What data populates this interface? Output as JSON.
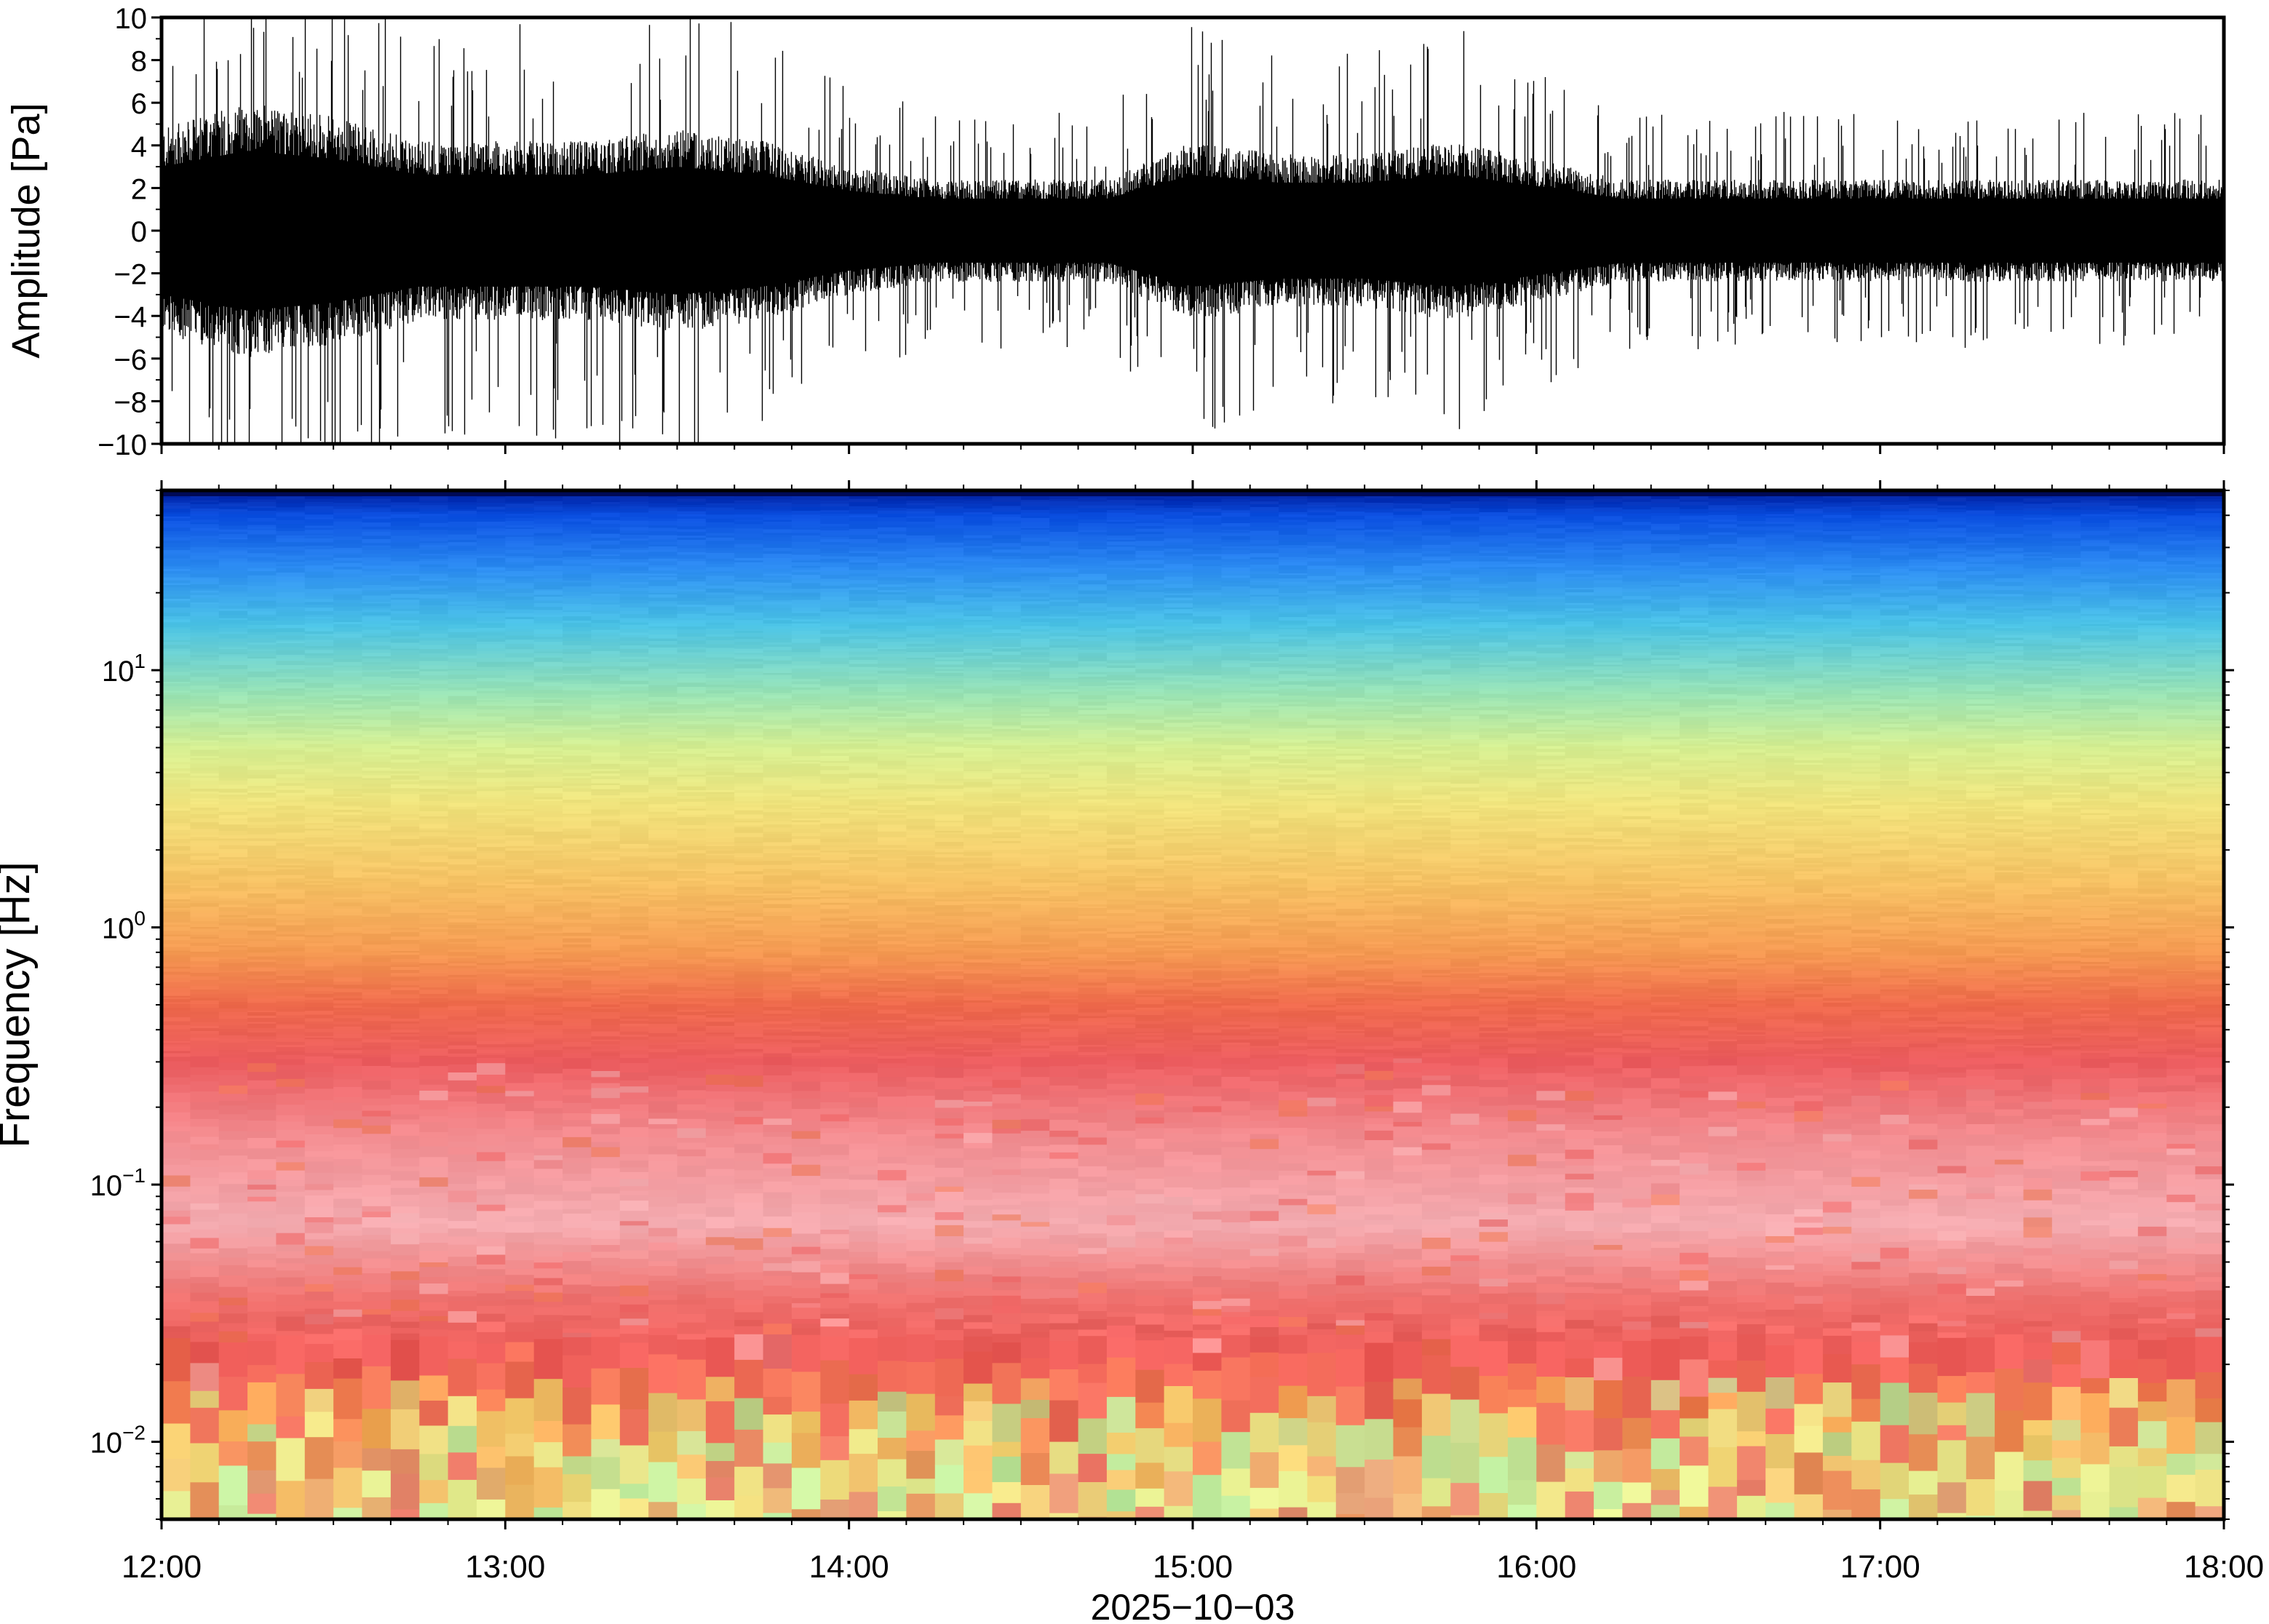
{
  "chart_data": [
    {
      "type": "line",
      "panel": "waveform",
      "ylabel": "Amplitude [Pa]",
      "ylim": [
        -10,
        10
      ],
      "yticks": [
        10,
        8,
        6,
        4,
        2,
        0,
        -2,
        -4,
        -6,
        -8,
        -10
      ],
      "ytick_labels": [
        "10",
        "8",
        "6",
        "4",
        "2",
        "0",
        "−2",
        "−4",
        "−6",
        "−8",
        "−10"
      ],
      "xlim": [
        "12:00",
        "18:00"
      ],
      "grid": false,
      "series": [
        {
          "color": "#000000",
          "envelope_hours": [
            12.0,
            12.25,
            12.5,
            12.75,
            13.0,
            13.25,
            13.5,
            13.75,
            14.0,
            14.25,
            14.5,
            14.75,
            15.0,
            15.25,
            15.5,
            15.75,
            16.0,
            16.25,
            16.5,
            16.75,
            17.0,
            17.25,
            17.5,
            17.75,
            18.0
          ],
          "envelope_pa": [
            4.0,
            5.0,
            4.5,
            3.5,
            3.5,
            3.5,
            4.0,
            3.5,
            2.5,
            2.0,
            2.0,
            2.0,
            3.5,
            3.0,
            3.0,
            3.5,
            2.8,
            2.0,
            2.0,
            2.0,
            2.0,
            2.0,
            2.0,
            2.0,
            2.0
          ]
        }
      ]
    },
    {
      "type": "heatmap",
      "panel": "spectrogram",
      "ylabel": "Frequency [Hz]",
      "xlabel": "2025−10−03",
      "yscale": "log",
      "ylim": [
        0.005,
        50
      ],
      "yticks": [
        0.01,
        0.1,
        1,
        10
      ],
      "ytick_labels": [
        {
          "base": "10",
          "exp": "−2"
        },
        {
          "base": "10",
          "exp": "−1"
        },
        {
          "base": "10",
          "exp": "0"
        },
        {
          "base": "10",
          "exp": "1"
        }
      ],
      "xticks": [
        "12:00",
        "13:00",
        "14:00",
        "15:00",
        "16:00",
        "17:00",
        "18:00"
      ],
      "grid": false,
      "colormap": {
        "name": "rainbow-like",
        "stops": [
          "#002bd2",
          "#1a7ef0",
          "#35b2f2",
          "#5fd8d8",
          "#b2ec9f",
          "#e8ef8c",
          "#f6d670",
          "#f7ac55",
          "#f0764c",
          "#ec5a5a",
          "#f2878a",
          "#f6b6b9"
        ]
      },
      "band_structure_hz": [
        {
          "freq": 50,
          "color": "#001a99"
        },
        {
          "freq": 40,
          "color": "#0a4ee0"
        },
        {
          "freq": 25,
          "color": "#2c8cf2"
        },
        {
          "freq": 15,
          "color": "#4bc3e6"
        },
        {
          "freq": 8,
          "color": "#9be4b4"
        },
        {
          "freq": 5,
          "color": "#d6ef92"
        },
        {
          "freq": 3,
          "color": "#f0e37c"
        },
        {
          "freq": 1.5,
          "color": "#f6c264"
        },
        {
          "freq": 0.8,
          "color": "#f59a52"
        },
        {
          "freq": 0.5,
          "color": "#ef6a4c"
        },
        {
          "freq": 0.3,
          "color": "#ec5c5f"
        },
        {
          "freq": 0.15,
          "color": "#f38e92"
        },
        {
          "freq": 0.07,
          "color": "#f5adb2"
        },
        {
          "freq": 0.035,
          "color": "#ef6f6c"
        },
        {
          "freq": 0.02,
          "color": "#ee5a56"
        },
        {
          "freq": 0.012,
          "color": "#f5a257"
        },
        {
          "freq": 0.007,
          "color": "#e5ee9a"
        }
      ]
    }
  ]
}
